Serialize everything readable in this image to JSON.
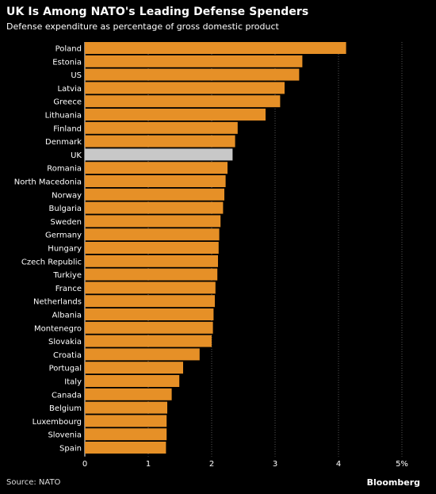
{
  "title": "UK Is Among NATO's Leading Defense Spenders",
  "subtitle": "Defense expenditure as percentage of gross domestic product",
  "source": "Source: NATO",
  "brand": "Bloomberg",
  "colors": {
    "bar": "#e69027",
    "highlight": "#c8c8c8",
    "background": "#000000",
    "grid": "#555555"
  },
  "chart_data": {
    "type": "bar",
    "orientation": "horizontal",
    "title": "UK Is Among NATO's Leading Defense Spenders",
    "subtitle": "Defense expenditure as percentage of gross domestic product",
    "categories": [
      "Poland",
      "Estonia",
      "US",
      "Latvia",
      "Greece",
      "Lithuania",
      "Finland",
      "Denmark",
      "UK",
      "Romania",
      "North Macedonia",
      "Norway",
      "Bulgaria",
      "Sweden",
      "Germany",
      "Hungary",
      "Czech Republic",
      "Turkiye",
      "France",
      "Netherlands",
      "Albania",
      "Montenegro",
      "Slovakia",
      "Croatia",
      "Portugal",
      "Italy",
      "Canada",
      "Belgium",
      "Luxembourg",
      "Slovenia",
      "Spain"
    ],
    "values": [
      4.12,
      3.43,
      3.38,
      3.15,
      3.08,
      2.85,
      2.41,
      2.37,
      2.33,
      2.25,
      2.22,
      2.2,
      2.18,
      2.14,
      2.12,
      2.11,
      2.1,
      2.09,
      2.06,
      2.05,
      2.03,
      2.02,
      2.0,
      1.81,
      1.55,
      1.49,
      1.37,
      1.3,
      1.29,
      1.29,
      1.28
    ],
    "highlight": "UK",
    "xlim": [
      0,
      5
    ],
    "xticks": [
      "0",
      "1",
      "2",
      "3",
      "4",
      "5%"
    ],
    "grid": true
  }
}
